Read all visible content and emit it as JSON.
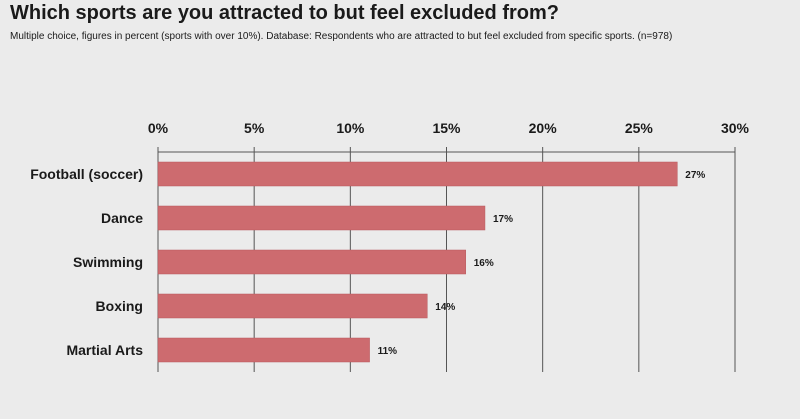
{
  "title": "Which sports are you attracted to but feel excluded from?",
  "subtitle": "Multiple choice, figures in percent (sports with over 10%). Database: Respondents who are attracted to but feel excluded from specific sports. (n=978)",
  "colors": {
    "bar": "#cd6b6f",
    "background": "#ebebeb",
    "grid": "#555555"
  },
  "chart_data": {
    "type": "bar",
    "orientation": "horizontal",
    "categories": [
      "Football (soccer)",
      "Dance",
      "Swimming",
      "Boxing",
      "Martial Arts"
    ],
    "values": [
      27,
      17,
      16,
      14,
      11
    ],
    "data_labels": [
      "27%",
      "17%",
      "16%",
      "14%",
      "11%"
    ],
    "xlim": [
      0,
      30
    ],
    "x_ticks": [
      0,
      5,
      10,
      15,
      20,
      25,
      30
    ],
    "x_tick_labels": [
      "0%",
      "5%",
      "10%",
      "15%",
      "20%",
      "25%",
      "30%"
    ],
    "x_axis_position": "top",
    "grid": true,
    "legend": "none"
  }
}
